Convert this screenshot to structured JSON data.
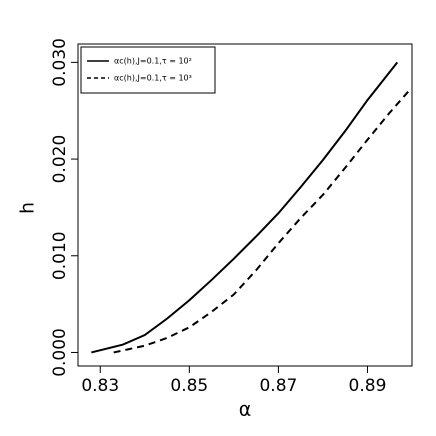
{
  "chart_data": {
    "type": "line",
    "x_label": "α",
    "y_label": "h",
    "xlim": [
      0.825,
      0.9
    ],
    "ylim": [
      -0.0014,
      0.0319
    ],
    "xticks": [
      0.83,
      0.85,
      0.87,
      0.89
    ],
    "yticks": [
      {
        "value": 0,
        "label": "0.000"
      },
      {
        "value": 0.01,
        "label": "0.010"
      },
      {
        "value": 0.02,
        "label": "0.020"
      },
      {
        "value": 0.03,
        "label": "0.030"
      }
    ],
    "legend": "top-left",
    "series": [
      {
        "name": "αc(h),J=0.1,τ = 10²",
        "color": "#000000",
        "dash": "solid",
        "x": [
          0.828,
          0.835,
          0.84,
          0.845,
          0.85,
          0.855,
          0.86,
          0.865,
          0.87,
          0.875,
          0.88,
          0.885,
          0.89,
          0.8967
        ],
        "values": [
          0,
          0.0008,
          0.0018,
          0.0035,
          0.0054,
          0.0075,
          0.0097,
          0.012,
          0.0144,
          0.0171,
          0.0199,
          0.0229,
          0.0261,
          0.03
        ]
      },
      {
        "name": "αc(h),J=0.1,τ = 10³",
        "color": "#000000",
        "dash": "dashed",
        "x": [
          0.833,
          0.84,
          0.845,
          0.85,
          0.855,
          0.86,
          0.865,
          0.87,
          0.875,
          0.88,
          0.885,
          0.89,
          0.895,
          0.8992
        ],
        "values": [
          0,
          0.0007,
          0.0015,
          0.0026,
          0.0042,
          0.006,
          0.0085,
          0.0113,
          0.0139,
          0.0163,
          0.0191,
          0.022,
          0.0248,
          0.027
        ]
      }
    ]
  }
}
